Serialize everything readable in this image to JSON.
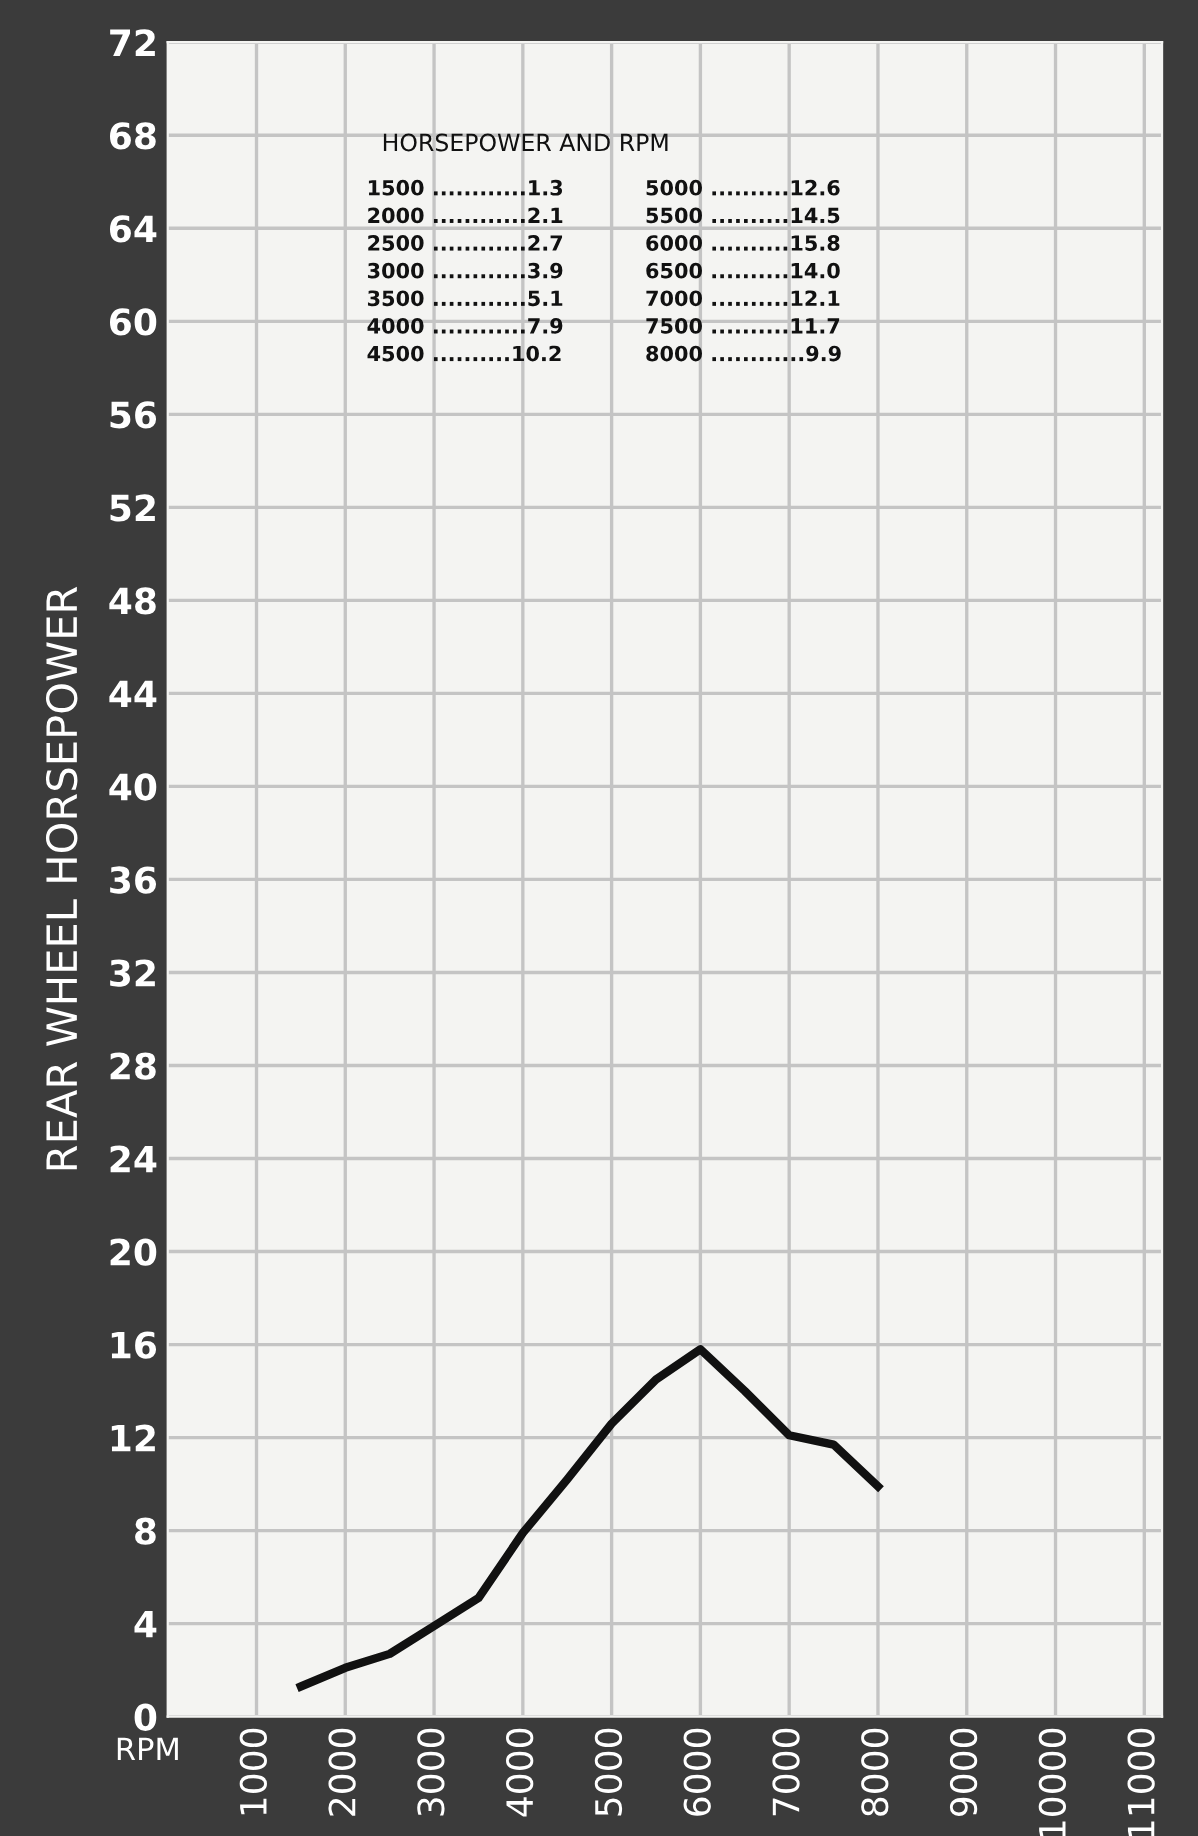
{
  "chart_data": {
    "type": "line",
    "xlabel": "RPM",
    "ylabel": "REAR WHEEL HORSEPOWER",
    "x": [
      1500,
      2000,
      2500,
      3000,
      3500,
      4000,
      4500,
      5000,
      5500,
      6000,
      6500,
      7000,
      7500,
      8000
    ],
    "series": [
      {
        "color": "#111111",
        "values": [
          1.3,
          2.1,
          2.7,
          3.9,
          5.1,
          7.9,
          10.2,
          12.6,
          14.5,
          15.8,
          14.0,
          12.1,
          11.7,
          9.9
        ]
      }
    ],
    "xlim": [
      0,
      11200
    ],
    "xticks": [
      1000,
      2000,
      3000,
      4000,
      5000,
      6000,
      7000,
      8000,
      9000,
      10000,
      11000
    ],
    "ylim": [
      0,
      72
    ],
    "yticks": [
      0,
      4,
      8,
      12,
      16,
      20,
      24,
      28,
      32,
      36,
      40,
      44,
      48,
      52,
      56,
      60,
      64,
      68,
      72
    ],
    "grid": true,
    "marker": "none",
    "line_style": "solid",
    "annotations": [
      "HORSEPOWER AND RPM",
      "1500 ............1.3",
      "2000 ............2.1",
      "2500 ............2.7",
      "3000 ............3.9",
      "3500 ............5.1",
      "4000 ............7.9",
      "4500 ..........10.2",
      "5000 ..........12.6",
      "5500 ..........14.5",
      "6000 ..........15.8",
      "6500 ..........14.0",
      "7000 ..........12.1",
      "7500 ..........11.7",
      "8000 ............9.9"
    ]
  }
}
